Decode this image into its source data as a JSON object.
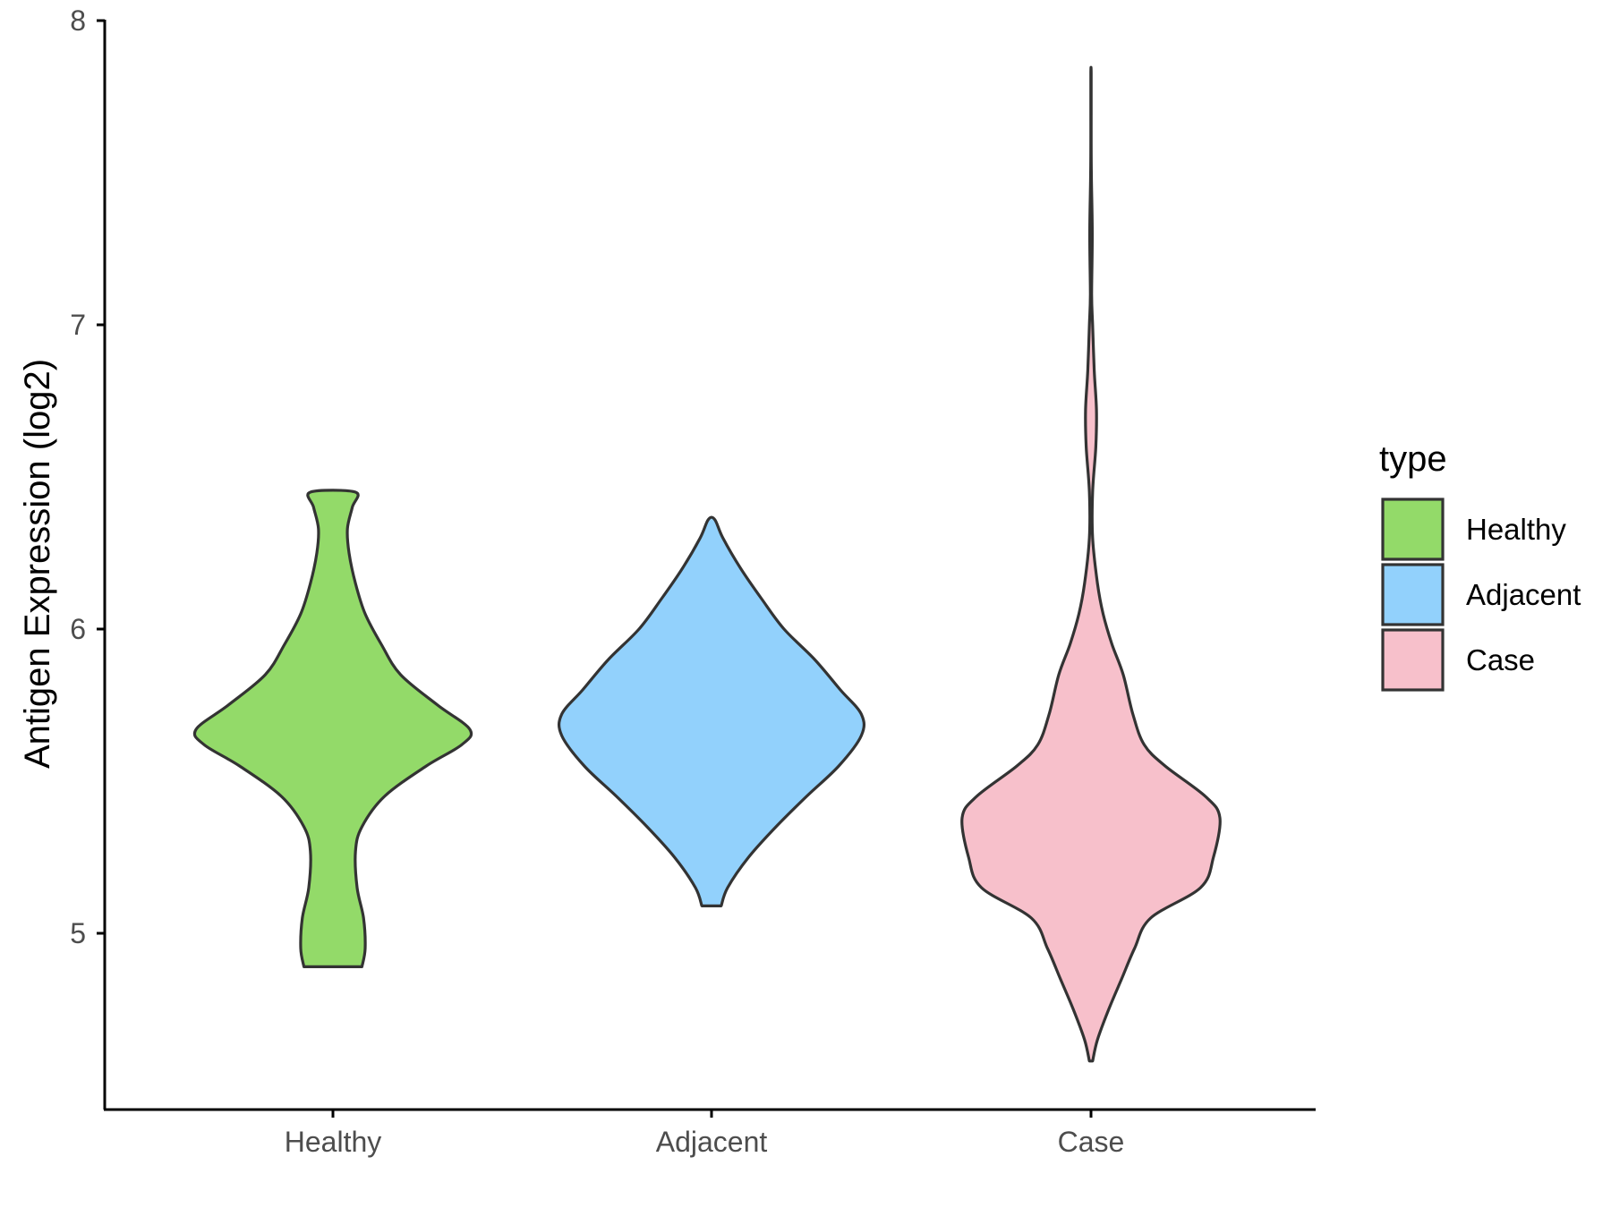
{
  "chart_data": {
    "type": "violin",
    "ylabel": "Antigen Expression (log2)",
    "xlabel": "",
    "ylim": [
      4.42,
      8.0
    ],
    "yticks": [
      "5",
      "6",
      "7",
      "8"
    ],
    "categories": [
      "Healthy",
      "Adjacent",
      "Case"
    ],
    "legend": {
      "title": "type",
      "position": "right",
      "items": [
        "Healthy",
        "Adjacent",
        "Case"
      ]
    },
    "grid": false,
    "series": [
      {
        "name": "Healthy",
        "color": "#93DA69",
        "profile": [
          [
            4.89,
            0.18
          ],
          [
            4.95,
            0.2
          ],
          [
            5.05,
            0.19
          ],
          [
            5.15,
            0.15
          ],
          [
            5.27,
            0.14
          ],
          [
            5.35,
            0.18
          ],
          [
            5.45,
            0.32
          ],
          [
            5.55,
            0.58
          ],
          [
            5.62,
            0.8
          ],
          [
            5.67,
            0.85
          ],
          [
            5.75,
            0.65
          ],
          [
            5.85,
            0.42
          ],
          [
            5.95,
            0.3
          ],
          [
            6.05,
            0.2
          ],
          [
            6.15,
            0.14
          ],
          [
            6.25,
            0.1
          ],
          [
            6.33,
            0.09
          ],
          [
            6.4,
            0.12
          ],
          [
            6.45,
            0.14
          ]
        ]
      },
      {
        "name": "Adjacent",
        "color": "#92D1FC",
        "profile": [
          [
            5.09,
            0.06
          ],
          [
            5.15,
            0.1
          ],
          [
            5.25,
            0.23
          ],
          [
            5.35,
            0.4
          ],
          [
            5.45,
            0.59
          ],
          [
            5.55,
            0.79
          ],
          [
            5.65,
            0.93
          ],
          [
            5.72,
            0.93
          ],
          [
            5.8,
            0.8
          ],
          [
            5.9,
            0.64
          ],
          [
            6.0,
            0.45
          ],
          [
            6.1,
            0.31
          ],
          [
            6.2,
            0.18
          ],
          [
            6.3,
            0.07
          ],
          [
            6.36,
            0.02
          ]
        ]
      },
      {
        "name": "Case",
        "color": "#F7C0CB",
        "profile": [
          [
            4.58,
            0.01
          ],
          [
            4.65,
            0.04
          ],
          [
            4.75,
            0.11
          ],
          [
            4.85,
            0.19
          ],
          [
            4.95,
            0.27
          ],
          [
            5.05,
            0.37
          ],
          [
            5.15,
            0.68
          ],
          [
            5.25,
            0.76
          ],
          [
            5.38,
            0.8
          ],
          [
            5.45,
            0.71
          ],
          [
            5.55,
            0.46
          ],
          [
            5.62,
            0.33
          ],
          [
            5.72,
            0.26
          ],
          [
            5.85,
            0.2
          ],
          [
            5.95,
            0.13
          ],
          [
            6.05,
            0.075
          ],
          [
            6.15,
            0.04
          ],
          [
            6.3,
            0.01
          ],
          [
            6.45,
            0.01
          ],
          [
            6.6,
            0.03
          ],
          [
            6.72,
            0.034
          ],
          [
            6.85,
            0.02
          ],
          [
            7.0,
            0.01
          ],
          [
            7.1,
            0.004
          ],
          [
            7.3,
            0.008
          ],
          [
            7.5,
            0.002
          ],
          [
            7.7,
            0.001
          ],
          [
            7.83,
            0.001
          ]
        ]
      }
    ]
  }
}
